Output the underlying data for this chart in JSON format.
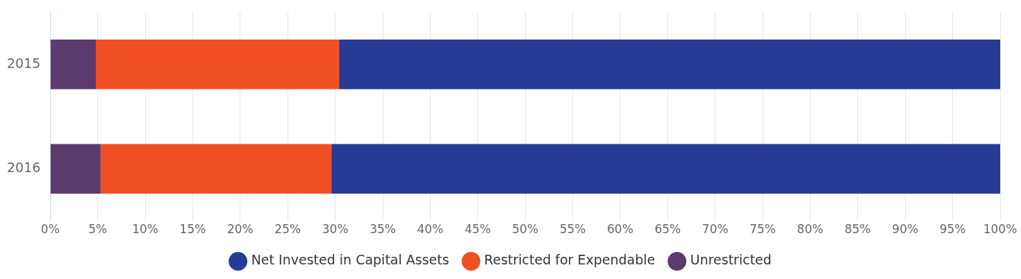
{
  "chart_data": {
    "type": "bar",
    "orientation": "horizontal",
    "stacked": true,
    "categories": [
      "2015",
      "2016"
    ],
    "series": [
      {
        "name": "Unrestricted",
        "color": "#5b3a6e",
        "values": [
          4.8,
          5.3
        ]
      },
      {
        "name": "Restricted for Expendable",
        "color": "#f05023",
        "values": [
          25.6,
          24.3
        ]
      },
      {
        "name": "Net Invested in Capital Assets",
        "color": "#263a96",
        "values": [
          69.6,
          70.4
        ]
      }
    ],
    "xlim": [
      0,
      100
    ],
    "xticks": [
      {
        "value": 0,
        "label": "0%"
      },
      {
        "value": 5,
        "label": "5%"
      },
      {
        "value": 10,
        "label": "10%"
      },
      {
        "value": 15,
        "label": "15%"
      },
      {
        "value": 20,
        "label": "20%"
      },
      {
        "value": 25,
        "label": "25%"
      },
      {
        "value": 30,
        "label": "30%"
      },
      {
        "value": 35,
        "label": "35%"
      },
      {
        "value": 40,
        "label": "40%"
      },
      {
        "value": 45,
        "label": "45%"
      },
      {
        "value": 50,
        "label": "50%"
      },
      {
        "value": 55,
        "label": "55%"
      },
      {
        "value": 60,
        "label": "60%"
      },
      {
        "value": 65,
        "label": "65%"
      },
      {
        "value": 70,
        "label": "70%"
      },
      {
        "value": 75,
        "label": "75%"
      },
      {
        "value": 80,
        "label": "80%"
      },
      {
        "value": 85,
        "label": "85%"
      },
      {
        "value": 90,
        "label": "90%"
      },
      {
        "value": 95,
        "label": "95%"
      },
      {
        "value": 100,
        "label": "100%"
      }
    ],
    "grid": "x",
    "legend": "bottom"
  }
}
